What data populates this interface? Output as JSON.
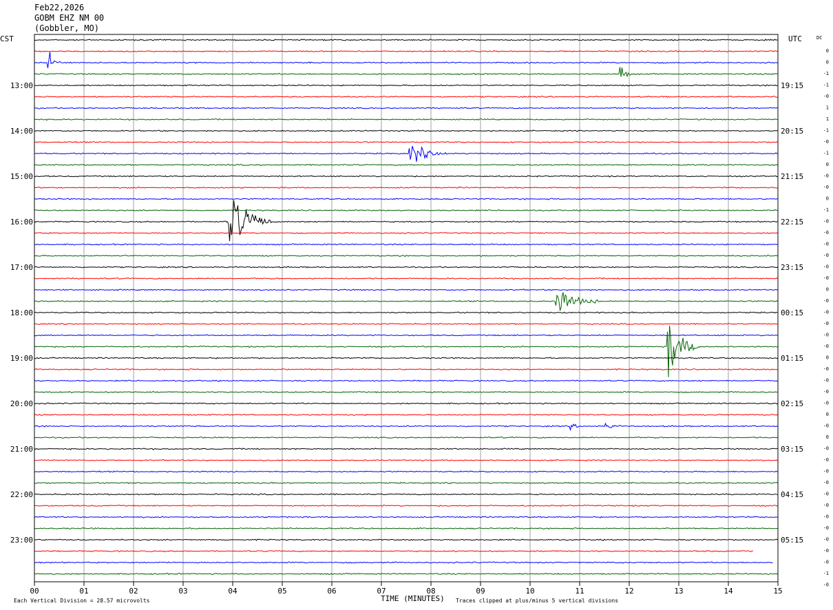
{
  "header": {
    "date": "Feb22,2026",
    "station": "GOBM EHZ NM 00",
    "location": "(Gobbler, MO)"
  },
  "labels": {
    "left_zone": "CST",
    "right_zone": "UTC",
    "dc": "DC"
  },
  "footer": {
    "scale_note": "Each Vertical Division =   28.57 microvolts",
    "x_axis_label": "TIME (MINUTES)",
    "clip_note": "Traces clipped at plus/minus 5 vertical divisions"
  },
  "colors": {
    "trace_cycle": [
      "#000000",
      "#ff0000",
      "#0000ff",
      "#006400"
    ],
    "grid": "#a0a0a0",
    "frame": "#000000"
  },
  "chart_data": {
    "type": "line",
    "title": "Feb22,2026 GOBM EHZ NM 00 (Gobbler, MO)",
    "xlabel": "TIME (MINUTES)",
    "x_ticks": [
      "00",
      "01",
      "02",
      "03",
      "04",
      "05",
      "06",
      "07",
      "08",
      "09",
      "10",
      "11",
      "12",
      "13",
      "14",
      "15"
    ],
    "xlim": [
      0,
      15
    ],
    "rows_per_hour": 4,
    "row_count": 48,
    "left_time_labels": [
      {
        "row": 4,
        "text": "13:00"
      },
      {
        "row": 8,
        "text": "14:00"
      },
      {
        "row": 12,
        "text": "15:00"
      },
      {
        "row": 16,
        "text": "16:00"
      },
      {
        "row": 20,
        "text": "17:00"
      },
      {
        "row": 24,
        "text": "18:00"
      },
      {
        "row": 28,
        "text": "19:00"
      },
      {
        "row": 32,
        "text": "20:00"
      },
      {
        "row": 36,
        "text": "21:00"
      },
      {
        "row": 40,
        "text": "22:00"
      },
      {
        "row": 44,
        "text": "23:00"
      }
    ],
    "right_time_labels": [
      {
        "row": 4,
        "text": "19:15"
      },
      {
        "row": 8,
        "text": "20:15"
      },
      {
        "row": 12,
        "text": "21:15"
      },
      {
        "row": 16,
        "text": "22:15"
      },
      {
        "row": 20,
        "text": "23:15"
      },
      {
        "row": 24,
        "text": "00:15"
      },
      {
        "row": 28,
        "text": "01:15"
      },
      {
        "row": 32,
        "text": "02:15"
      },
      {
        "row": 36,
        "text": "03:15"
      },
      {
        "row": 40,
        "text": "04:15"
      },
      {
        "row": 44,
        "text": "05:15"
      }
    ],
    "dc_offsets": [
      "0",
      "0",
      "-1",
      "-1",
      "-0",
      "1",
      "1",
      "-1",
      "-0",
      "-1",
      "0",
      "-0",
      "-0",
      "0",
      "-1",
      "-0",
      "-0",
      "-0",
      "-0",
      "-0",
      "-0",
      "0",
      "-0",
      "-0",
      "-0",
      "-0",
      "-0",
      "0",
      "-0",
      "-0",
      "-0",
      "-0",
      "0",
      "-0",
      "0",
      "-0",
      "-0",
      "-0",
      "-0",
      "-0",
      "-0",
      "-0",
      "-0",
      "-0",
      "-0",
      "-0",
      "-1",
      "-0"
    ],
    "events": [
      {
        "row": 2,
        "minute": 0.25,
        "duration": 0.35,
        "amplitude": 1.8
      },
      {
        "row": 3,
        "minute": 11.8,
        "duration": 0.25,
        "amplitude": 1.9
      },
      {
        "row": 10,
        "minute": 7.55,
        "duration": 0.8,
        "amplitude": 1.6
      },
      {
        "row": 16,
        "minute": 3.9,
        "duration": 0.9,
        "amplitude": 5
      },
      {
        "row": 23,
        "minute": 10.5,
        "duration": 0.9,
        "amplitude": 2.0
      },
      {
        "row": 27,
        "minute": 12.75,
        "duration": 0.7,
        "amplitude": 5
      },
      {
        "row": 34,
        "minute": 10.8,
        "duration": 0.3,
        "amplitude": 0.4
      },
      {
        "row": 34,
        "minute": 11.5,
        "duration": 0.35,
        "amplitude": 0.5
      }
    ],
    "row_end_minutes": {
      "45": 14.5,
      "46": 14.9,
      "47": 15
    }
  }
}
